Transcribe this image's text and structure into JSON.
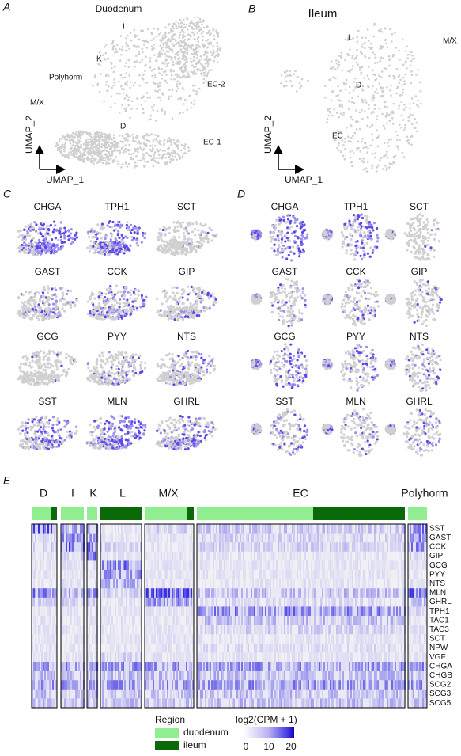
{
  "panels": {
    "A": {
      "letter": "A",
      "title": "Duodenum",
      "clusters": [
        "I",
        "K",
        "Polyhorm",
        "M/X",
        "D",
        "EC-2",
        "EC-1"
      ],
      "x_axis": "UMAP_1",
      "y_axis": "UMAP_2"
    },
    "B": {
      "letter": "B",
      "title": "Ileum",
      "clusters": [
        "L",
        "M/X",
        "D",
        "EC"
      ],
      "x_axis": "UMAP_1",
      "y_axis": "UMAP_2"
    },
    "C": {
      "letter": "C",
      "genes": [
        "CHGA",
        "TPH1",
        "SCT",
        "GAST",
        "CCK",
        "GIP",
        "GCG",
        "PYY",
        "NTS",
        "SST",
        "MLN",
        "GHRL"
      ]
    },
    "D": {
      "letter": "D",
      "genes": [
        "CHGA",
        "TPH1",
        "SCT",
        "GAST",
        "CCK",
        "GIP",
        "GCG",
        "PYY",
        "NTS",
        "SST",
        "MLN",
        "GHRL"
      ]
    }
  },
  "heatmap": {
    "letter": "E",
    "groups": [
      "D",
      "I",
      "K",
      "L",
      "M/X",
      "EC",
      "Polyhorm"
    ],
    "genes": [
      "SST",
      "GAST",
      "CCK",
      "GIP",
      "GCG",
      "PYY",
      "NTS",
      "MLN",
      "GHRL",
      "TPH1",
      "TAC1",
      "TAC3",
      "SCT",
      "NPW",
      "VGF",
      "CHGA",
      "CHGB",
      "SCG2",
      "SCG3",
      "SCG5"
    ],
    "legend": {
      "region_title": "Region",
      "regions": [
        "duodenum",
        "ileum"
      ],
      "scale_title": "log2(CPM + 1)",
      "scale_ticks": [
        "0",
        "10",
        "20"
      ]
    }
  }
}
